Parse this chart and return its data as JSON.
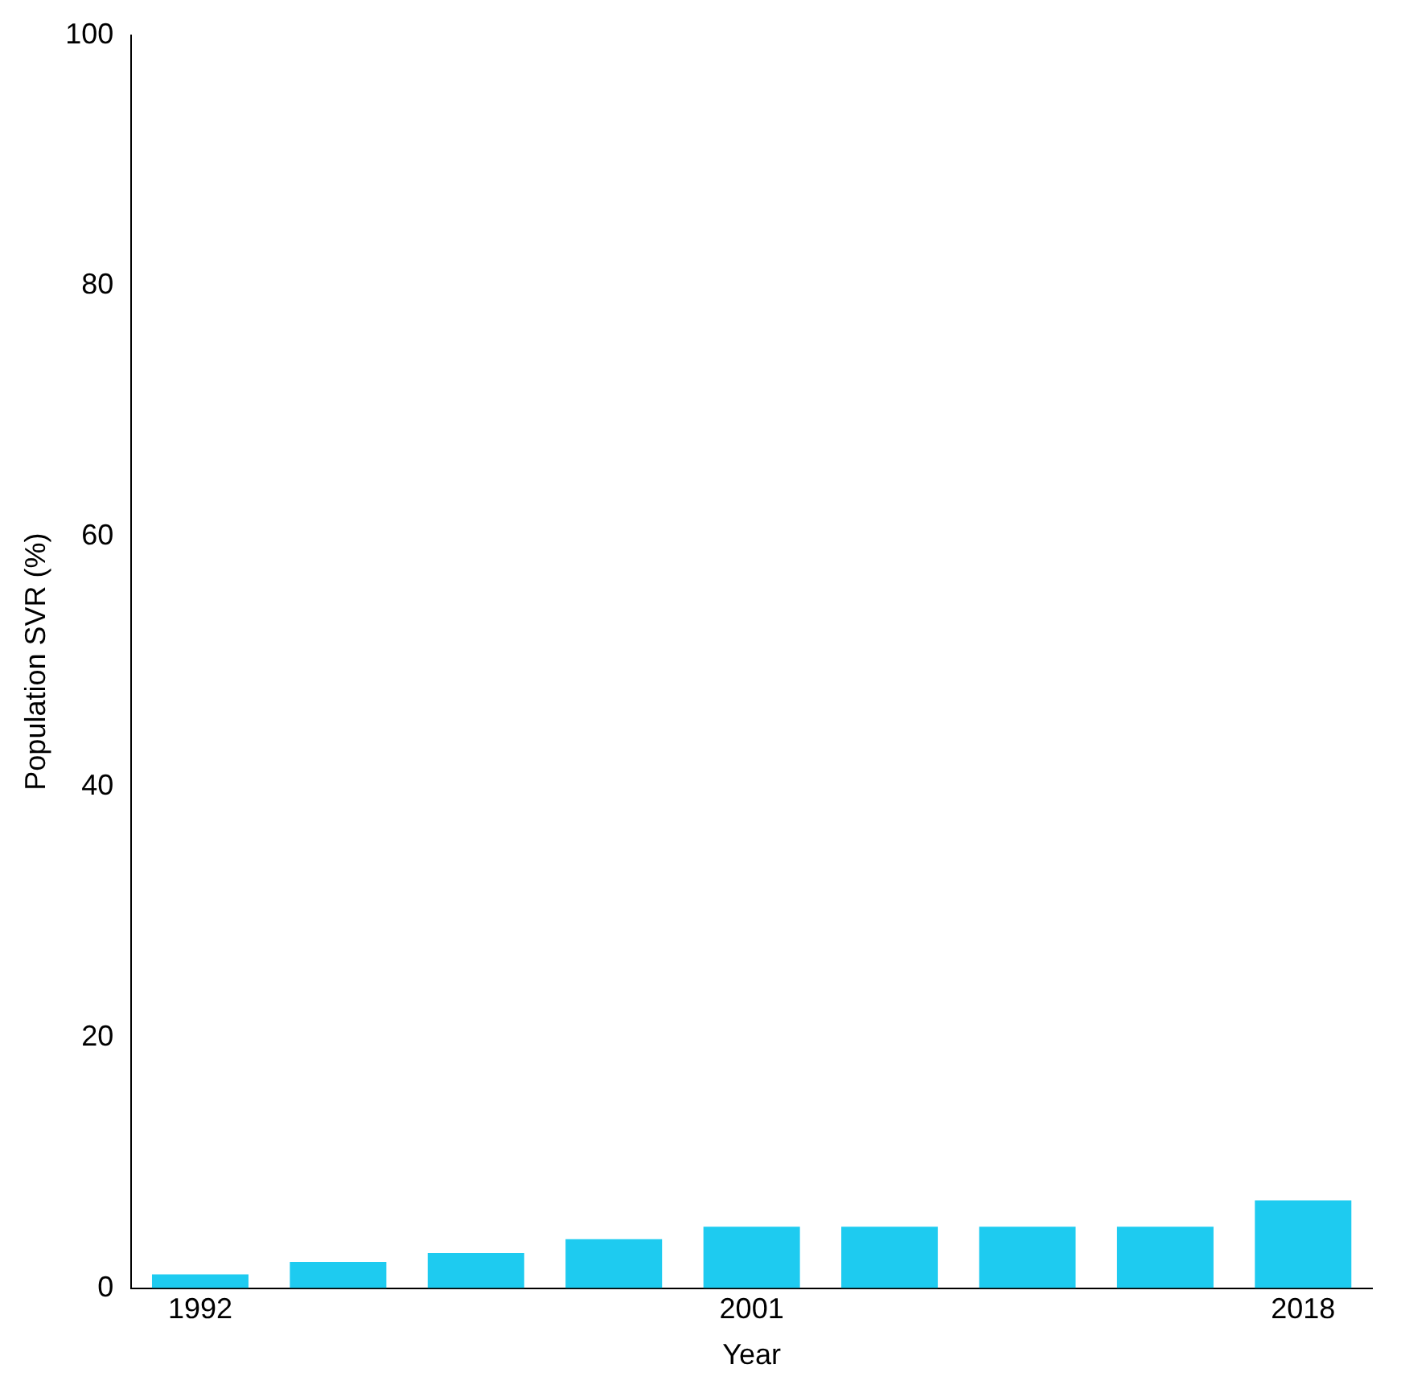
{
  "chart_data": {
    "type": "bar",
    "xlabel": "Year",
    "ylabel": "Population SVR (%)",
    "categories": [
      "1992",
      null,
      null,
      null,
      "2001",
      null,
      null,
      null,
      "2018"
    ],
    "series": [
      {
        "color": "#1ecbf0",
        "values": [
          1.1,
          2.1,
          2.8,
          3.9,
          4.9,
          4.9,
          4.9,
          4.9,
          7.0
        ]
      }
    ],
    "ylim": [
      0,
      100
    ],
    "yticks": [
      0,
      20,
      40,
      60,
      80,
      100
    ],
    "grid": false,
    "legend": false
  }
}
